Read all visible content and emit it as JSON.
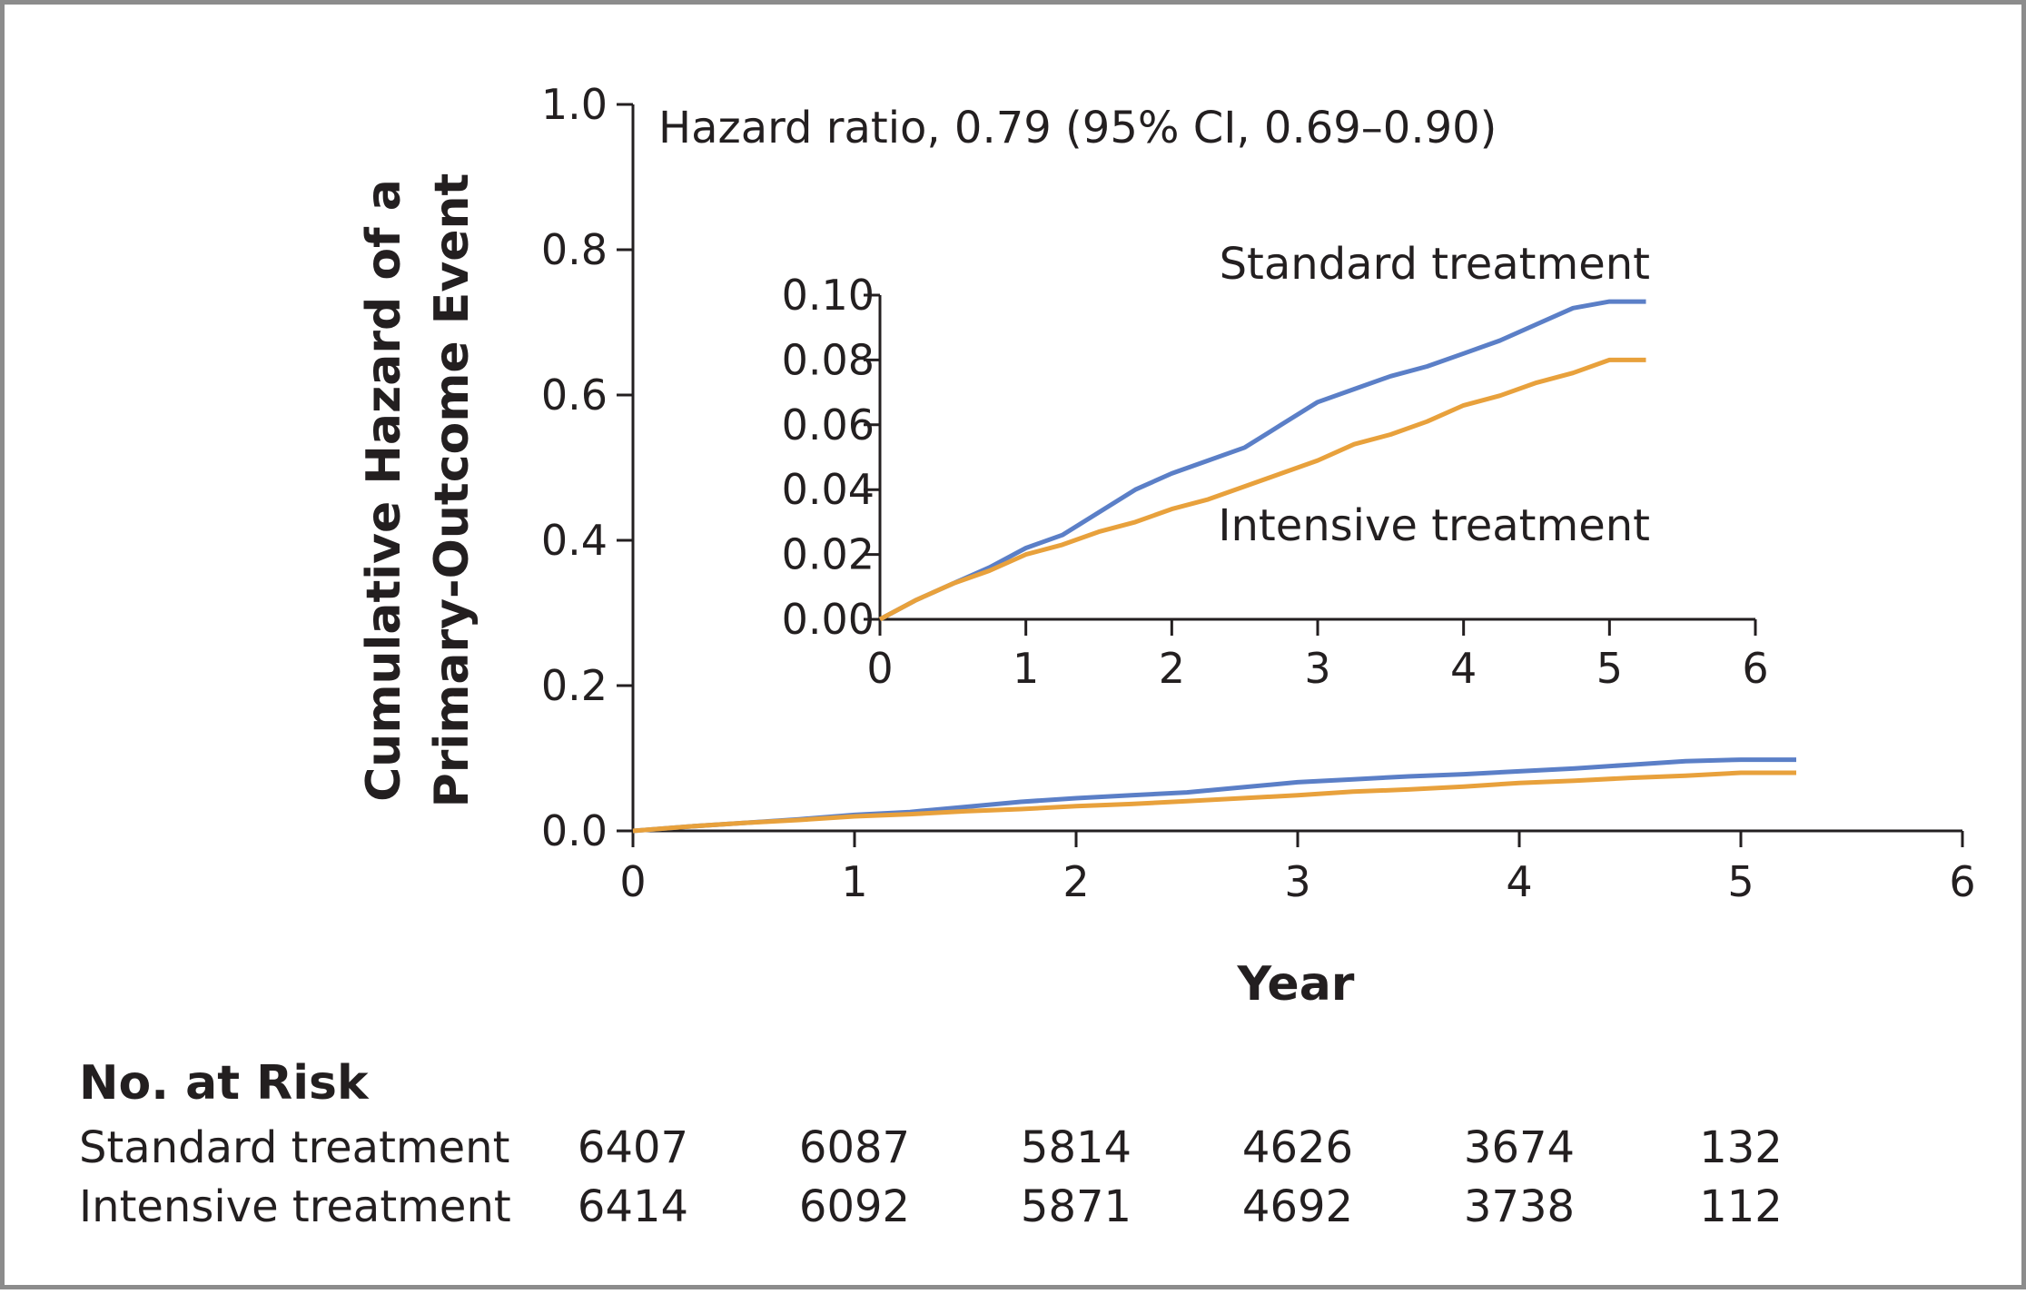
{
  "chart_data": [
    {
      "type": "line",
      "xlabel": "Year",
      "ylabel_lines": [
        "Cumulative Hazard of a",
        "Primary-Outcome Event"
      ],
      "xlim": [
        0,
        6
      ],
      "ylim": [
        0,
        1.0
      ],
      "x_ticks": [
        "0",
        "1",
        "2",
        "3",
        "4",
        "5",
        "6"
      ],
      "y_ticks": [
        "0.0",
        "0.2",
        "0.4",
        "0.6",
        "0.8",
        "1.0"
      ],
      "annotation": "Hazard ratio, 0.79 (95% CI, 0.69–0.90)",
      "grid": false,
      "series": [
        {
          "name": "Standard treatment",
          "color": "#5b7fc7",
          "x": [
            0,
            0.25,
            0.5,
            0.75,
            1.0,
            1.25,
            1.5,
            1.75,
            2.0,
            2.25,
            2.5,
            2.75,
            3.0,
            3.25,
            3.5,
            3.75,
            4.0,
            4.25,
            4.5,
            4.75,
            5.0,
            5.25
          ],
          "y": [
            0,
            0.006,
            0.011,
            0.016,
            0.022,
            0.026,
            0.033,
            0.04,
            0.045,
            0.049,
            0.053,
            0.06,
            0.067,
            0.071,
            0.075,
            0.078,
            0.082,
            0.086,
            0.091,
            0.096,
            0.098,
            0.098
          ]
        },
        {
          "name": "Intensive treatment",
          "color": "#e8a13c",
          "x": [
            0,
            0.25,
            0.5,
            0.75,
            1.0,
            1.25,
            1.5,
            1.75,
            2.0,
            2.25,
            2.5,
            2.75,
            3.0,
            3.25,
            3.5,
            3.75,
            4.0,
            4.25,
            4.5,
            4.75,
            5.0,
            5.25
          ],
          "y": [
            0,
            0.006,
            0.011,
            0.015,
            0.02,
            0.023,
            0.027,
            0.03,
            0.034,
            0.037,
            0.041,
            0.045,
            0.049,
            0.054,
            0.057,
            0.061,
            0.066,
            0.069,
            0.073,
            0.076,
            0.08,
            0.08
          ]
        }
      ]
    },
    {
      "type": "line",
      "inset": true,
      "xlim": [
        0,
        6
      ],
      "ylim": [
        0,
        0.1
      ],
      "x_ticks": [
        "0",
        "1",
        "2",
        "3",
        "4",
        "5",
        "6"
      ],
      "y_ticks": [
        "0.00",
        "0.02",
        "0.04",
        "0.06",
        "0.08",
        "0.10"
      ],
      "series_labels": [
        "Standard treatment",
        "Intensive treatment"
      ]
    }
  ],
  "risk_table": {
    "title": "No. at Risk",
    "rows": [
      {
        "label": "Standard treatment",
        "values": [
          "6407",
          "6087",
          "5814",
          "4626",
          "3674",
          "132"
        ]
      },
      {
        "label": "Intensive treatment",
        "values": [
          "6414",
          "6092",
          "5871",
          "4692",
          "3738",
          "112"
        ]
      }
    ]
  }
}
